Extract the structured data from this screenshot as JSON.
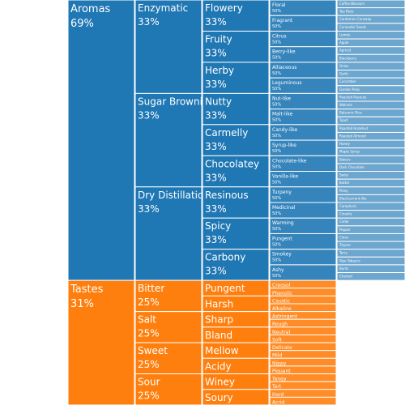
{
  "chart_data": {
    "type": "icicle",
    "title": "",
    "colors": {
      "aromas": "#1f77b4",
      "tastes": "#ff7f0e"
    },
    "tree": [
      {
        "name": "Aromas",
        "pct": "69%",
        "value": 18,
        "children": [
          {
            "name": "Enzymatic",
            "pct": "33%",
            "value": 6,
            "children": [
              {
                "name": "Flowery",
                "pct": "33%",
                "value": 2,
                "children": [
                  {
                    "name": "Floral",
                    "pct": "50%",
                    "value": 1,
                    "children": [
                      {
                        "name": "Coffee Blossom",
                        "pct": "",
                        "value": 0.5
                      },
                      {
                        "name": "Tea Rose",
                        "pct": "",
                        "value": 0.5
                      }
                    ]
                  },
                  {
                    "name": "Fragrant",
                    "pct": "50%",
                    "value": 1,
                    "children": [
                      {
                        "name": "Cardamon Caraway",
                        "pct": "",
                        "value": 0.5
                      },
                      {
                        "name": "Coriander Seeds",
                        "pct": "",
                        "value": 0.5
                      }
                    ]
                  }
                ]
              },
              {
                "name": "Fruity",
                "pct": "33%",
                "value": 2,
                "children": [
                  {
                    "name": "Citrus",
                    "pct": "50%",
                    "value": 1,
                    "children": [
                      {
                        "name": "Lemon",
                        "pct": "",
                        "value": 0.5
                      },
                      {
                        "name": "Apple",
                        "pct": "",
                        "value": 0.5
                      }
                    ]
                  },
                  {
                    "name": "Berry-like",
                    "pct": "50%",
                    "value": 1,
                    "children": [
                      {
                        "name": "Apricot",
                        "pct": "",
                        "value": 0.5
                      },
                      {
                        "name": "Blackberry",
                        "pct": "",
                        "value": 0.5
                      }
                    ]
                  }
                ]
              },
              {
                "name": "Herby",
                "pct": "33%",
                "value": 2,
                "children": [
                  {
                    "name": "Alliaceous",
                    "pct": "50%",
                    "value": 1,
                    "children": [
                      {
                        "name": "Onion",
                        "pct": "",
                        "value": 0.5
                      },
                      {
                        "name": "Garlic",
                        "pct": "",
                        "value": 0.5
                      }
                    ]
                  },
                  {
                    "name": "Leguminous",
                    "pct": "50%",
                    "value": 1,
                    "children": [
                      {
                        "name": "Cucumber",
                        "pct": "",
                        "value": 0.5
                      },
                      {
                        "name": "Garden Peas",
                        "pct": "",
                        "value": 0.5
                      }
                    ]
                  }
                ]
              }
            ]
          },
          {
            "name": "Sugar Browning",
            "pct": "33%",
            "value": 6,
            "children": [
              {
                "name": "Nutty",
                "pct": "33%",
                "value": 2,
                "children": [
                  {
                    "name": "Nut-like",
                    "pct": "50%",
                    "value": 1,
                    "children": [
                      {
                        "name": "Roasted Peanuts",
                        "pct": "",
                        "value": 0.5
                      },
                      {
                        "name": "Walnuts",
                        "pct": "",
                        "value": 0.5
                      }
                    ]
                  },
                  {
                    "name": "Malt-like",
                    "pct": "50%",
                    "value": 1,
                    "children": [
                      {
                        "name": "Balsamic Rice",
                        "pct": "",
                        "value": 0.5
                      },
                      {
                        "name": "Toast",
                        "pct": "",
                        "value": 0.5
                      }
                    ]
                  }
                ]
              },
              {
                "name": "Carmelly",
                "pct": "33%",
                "value": 2,
                "children": [
                  {
                    "name": "Candy-like",
                    "pct": "50%",
                    "value": 1,
                    "children": [
                      {
                        "name": "Roasted Hazelnut",
                        "pct": "",
                        "value": 0.5
                      },
                      {
                        "name": "Roasted Almond",
                        "pct": "",
                        "value": 0.5
                      }
                    ]
                  },
                  {
                    "name": "Syrup-like",
                    "pct": "50%",
                    "value": 1,
                    "children": [
                      {
                        "name": "Honey",
                        "pct": "",
                        "value": 0.5
                      },
                      {
                        "name": "Maple Syrup",
                        "pct": "",
                        "value": 0.5
                      }
                    ]
                  }
                ]
              },
              {
                "name": "Chocolatey",
                "pct": "33%",
                "value": 2,
                "children": [
                  {
                    "name": "Chocolate-like",
                    "pct": "50%",
                    "value": 1,
                    "children": [
                      {
                        "name": "Bakers",
                        "pct": "",
                        "value": 0.5
                      },
                      {
                        "name": "Dark Chocolate",
                        "pct": "",
                        "value": 0.5
                      }
                    ]
                  },
                  {
                    "name": "Vanilla-like",
                    "pct": "50%",
                    "value": 1,
                    "children": [
                      {
                        "name": "Swiss",
                        "pct": "",
                        "value": 0.5
                      },
                      {
                        "name": "Butter",
                        "pct": "",
                        "value": 0.5
                      }
                    ]
                  }
                ]
              }
            ]
          },
          {
            "name": "Dry Distillation",
            "pct": "33%",
            "value": 6,
            "children": [
              {
                "name": "Resinous",
                "pct": "33%",
                "value": 2,
                "children": [
                  {
                    "name": "Turpeny",
                    "pct": "50%",
                    "value": 1,
                    "children": [
                      {
                        "name": "Piney",
                        "pct": "",
                        "value": 0.5
                      },
                      {
                        "name": "Blackcurrant-like",
                        "pct": "",
                        "value": 0.5
                      }
                    ]
                  },
                  {
                    "name": "Medicinal",
                    "pct": "50%",
                    "value": 1,
                    "children": [
                      {
                        "name": "Camphoric",
                        "pct": "",
                        "value": 0.5
                      },
                      {
                        "name": "Cineolic",
                        "pct": "",
                        "value": 0.5
                      }
                    ]
                  }
                ]
              },
              {
                "name": "Spicy",
                "pct": "33%",
                "value": 2,
                "children": [
                  {
                    "name": "Warming",
                    "pct": "50%",
                    "value": 1,
                    "children": [
                      {
                        "name": "Cedar",
                        "pct": "",
                        "value": 0.5
                      },
                      {
                        "name": "Pepper",
                        "pct": "",
                        "value": 0.5
                      }
                    ]
                  },
                  {
                    "name": "Pungent",
                    "pct": "50%",
                    "value": 1,
                    "children": [
                      {
                        "name": "Clove",
                        "pct": "",
                        "value": 0.5
                      },
                      {
                        "name": "Thyme",
                        "pct": "",
                        "value": 0.5
                      }
                    ]
                  }
                ]
              },
              {
                "name": "Carbony",
                "pct": "33%",
                "value": 2,
                "children": [
                  {
                    "name": "Smokey",
                    "pct": "50%",
                    "value": 1,
                    "children": [
                      {
                        "name": "Tarry",
                        "pct": "",
                        "value": 0.5
                      },
                      {
                        "name": "Pipe Tobacco",
                        "pct": "",
                        "value": 0.5
                      }
                    ]
                  },
                  {
                    "name": "Ashy",
                    "pct": "50%",
                    "value": 1,
                    "children": [
                      {
                        "name": "Burnt",
                        "pct": "",
                        "value": 0.5
                      },
                      {
                        "name": "Charred",
                        "pct": "",
                        "value": 0.5
                      }
                    ]
                  }
                ]
              }
            ]
          }
        ]
      },
      {
        "name": "Tastes",
        "pct": "31%",
        "value": 8,
        "children": [
          {
            "name": "Bitter",
            "pct": "25%",
            "value": 2,
            "children": [
              {
                "name": "Pungent",
                "pct": "50%",
                "value": 1,
                "children": [
                  {
                    "name": "Creosol",
                    "pct": "",
                    "value": 0.5
                  },
                  {
                    "name": "Phenolic",
                    "pct": "",
                    "value": 0.5
                  }
                ]
              },
              {
                "name": "Harsh",
                "pct": "50%",
                "value": 1,
                "children": [
                  {
                    "name": "Caustic",
                    "pct": "",
                    "value": 0.5
                  },
                  {
                    "name": "Alkaline",
                    "pct": "",
                    "value": 0.5
                  }
                ]
              }
            ]
          },
          {
            "name": "Salt",
            "pct": "25%",
            "value": 2,
            "children": [
              {
                "name": "Sharp",
                "pct": "50%",
                "value": 1,
                "children": [
                  {
                    "name": "Astringent",
                    "pct": "",
                    "value": 0.5
                  },
                  {
                    "name": "Rough",
                    "pct": "",
                    "value": 0.5
                  }
                ]
              },
              {
                "name": "Bland",
                "pct": "50%",
                "value": 1,
                "children": [
                  {
                    "name": "Neutral",
                    "pct": "",
                    "value": 0.5
                  },
                  {
                    "name": "Soft",
                    "pct": "",
                    "value": 0.5
                  }
                ]
              }
            ]
          },
          {
            "name": "Sweet",
            "pct": "25%",
            "value": 2,
            "children": [
              {
                "name": "Mellow",
                "pct": "50%",
                "value": 1,
                "children": [
                  {
                    "name": "Delicate",
                    "pct": "",
                    "value": 0.5
                  },
                  {
                    "name": "Mild",
                    "pct": "",
                    "value": 0.5
                  }
                ]
              },
              {
                "name": "Acidy",
                "pct": "50%",
                "value": 1,
                "children": [
                  {
                    "name": "Nippy",
                    "pct": "",
                    "value": 0.5
                  },
                  {
                    "name": "Piquant",
                    "pct": "",
                    "value": 0.5
                  }
                ]
              }
            ]
          },
          {
            "name": "Sour",
            "pct": "25%",
            "value": 2,
            "children": [
              {
                "name": "Winey",
                "pct": "50%",
                "value": 1,
                "children": [
                  {
                    "name": "Tangy",
                    "pct": "",
                    "value": 0.5
                  },
                  {
                    "name": "Tart",
                    "pct": "",
                    "value": 0.5
                  }
                ]
              },
              {
                "name": "Soury",
                "pct": "50%",
                "value": 1,
                "children": [
                  {
                    "name": "Hard",
                    "pct": "",
                    "value": 0.5
                  },
                  {
                    "name": "Acrid",
                    "pct": "",
                    "value": 0.5
                  }
                ]
              }
            ]
          }
        ]
      }
    ]
  }
}
